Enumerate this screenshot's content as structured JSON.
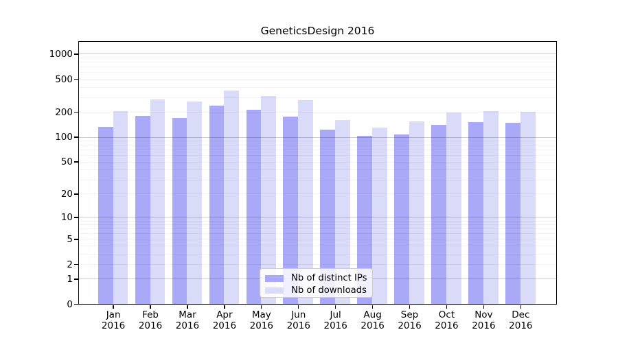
{
  "chart_data": {
    "type": "bar",
    "title": "GeneticsDesign 2016",
    "x_categories": [
      "Jan",
      "Feb",
      "Mar",
      "Apr",
      "May",
      "Jun",
      "Jul",
      "Aug",
      "Sep",
      "Oct",
      "Nov",
      "Dec"
    ],
    "x_year": "2016",
    "y_scale": "log1p",
    "y_ticks": [
      0,
      1,
      2,
      5,
      10,
      20,
      50,
      100,
      200,
      500,
      1000
    ],
    "ylim": [
      0,
      1400
    ],
    "grid": true,
    "legend_position": "inside-bottom-center",
    "series": [
      {
        "name": "Nb of distinct IPs",
        "color": "#a9a9f7",
        "values": [
          131,
          180,
          170,
          238,
          212,
          175,
          123,
          102,
          106,
          141,
          152,
          149
        ]
      },
      {
        "name": "Nb of downloads",
        "color": "#dadaf9",
        "values": [
          203,
          281,
          269,
          360,
          310,
          277,
          160,
          130,
          154,
          198,
          206,
          202
        ]
      }
    ]
  }
}
